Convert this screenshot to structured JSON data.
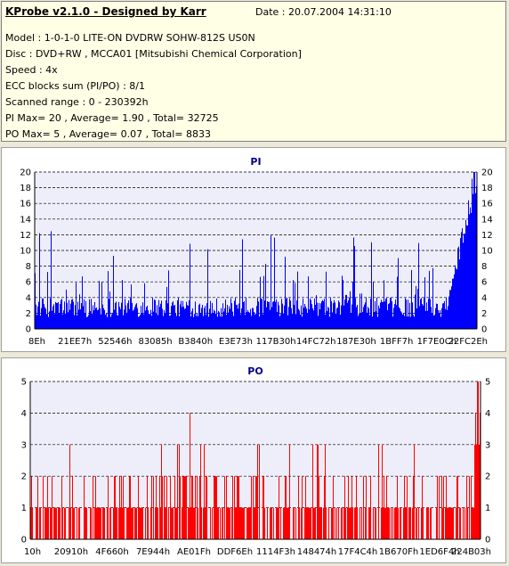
{
  "header": {
    "title": "KProbe v2.1.0 - Designed by Karr",
    "date": "Date : 20.07.2004 14:31:10",
    "lines": [
      "Model : 1-0-1-0 LITE-ON DVDRW SOHW-812S  US0N",
      "Disc : DVD+RW , MCCA01 [Mitsubishi Chemical Corporation]",
      "Speed : 4x",
      "ECC blocks sum (PI/PO) : 8/1",
      "Scanned range : 0 - 230392h",
      "PI Max= 20 , Average= 1.90 , Total= 32725",
      "PO Max= 5 , Average= 0.07 , Total= 8833"
    ]
  },
  "chart_data": [
    {
      "type": "bar",
      "title": "PI",
      "color": "#0000ff",
      "ylim": [
        0,
        20
      ],
      "yticks": [
        0,
        2,
        4,
        6,
        8,
        10,
        12,
        14,
        16,
        18,
        20
      ],
      "xtick_labels": [
        "8Eh",
        "21EE7h",
        "52546h",
        "83085h",
        "B3840h",
        "E3E73h",
        "117B30h",
        "14FC72h",
        "187E30h",
        "1BFF7h",
        "1F7E0Ch",
        "22FC2Eh"
      ],
      "grid": true,
      "max": 20,
      "average": 1.9,
      "total": 32725
    },
    {
      "type": "bar",
      "title": "PO",
      "color": "#ff0000",
      "ylim": [
        0,
        5
      ],
      "yticks": [
        0,
        1,
        2,
        3,
        4,
        5
      ],
      "xtick_labels": [
        "10h",
        "20910h",
        "4F660h",
        "7E944h",
        "AE01Fh",
        "DDF6Eh",
        "1114F3h",
        "148474h",
        "17F4C4h",
        "1B670Fh",
        "1ED6F4h",
        "224B03h"
      ],
      "grid": true,
      "max": 5,
      "average": 0.07,
      "total": 8833
    }
  ]
}
